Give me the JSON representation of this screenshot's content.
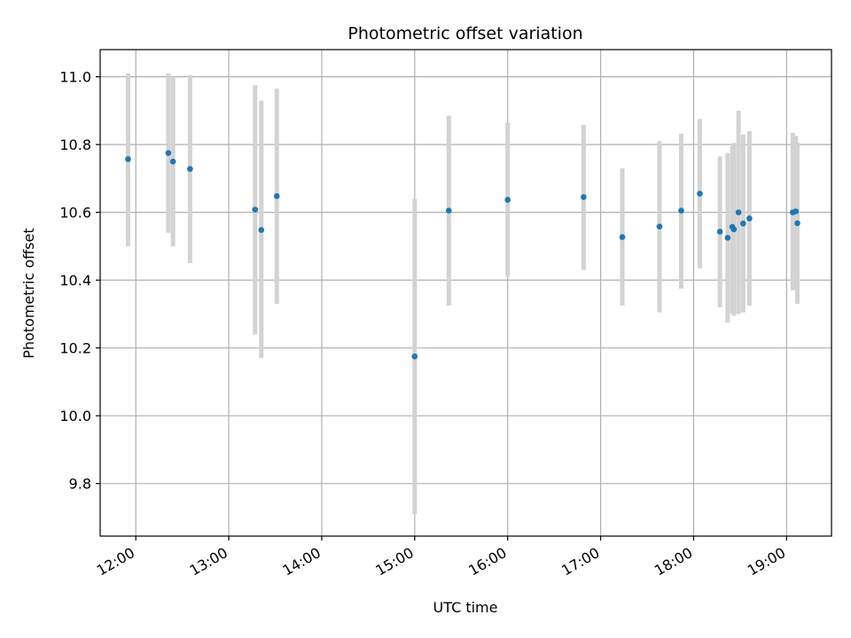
{
  "chart_data": {
    "type": "scatter",
    "title": "Photometric offset variation",
    "xlabel": "UTC time",
    "ylabel": "Photometric offset",
    "x_unit": "UTC time of day (HH:MM)",
    "xlim": [
      "11:37",
      "19:29"
    ],
    "ylim": [
      9.645,
      11.08
    ],
    "grid": true,
    "x_ticks": [
      "12:00",
      "13:00",
      "14:00",
      "15:00",
      "16:00",
      "17:00",
      "18:00",
      "19:00"
    ],
    "y_ticks": [
      9.8,
      10.0,
      10.2,
      10.4,
      10.6,
      10.8,
      11.0
    ],
    "y_tick_labels": [
      "9.8",
      "10.0",
      "10.2",
      "10.4",
      "10.6",
      "10.8",
      "11.0"
    ],
    "point_color": "#1f77b4",
    "errorbar_color": "#d3d3d3",
    "points": [
      {
        "time": "11:55",
        "y": 10.757,
        "yerr": [
          10.5,
          11.01
        ]
      },
      {
        "time": "12:21",
        "y": 10.775,
        "yerr": [
          10.54,
          11.01
        ]
      },
      {
        "time": "12:24",
        "y": 10.75,
        "yerr": [
          10.5,
          11.0
        ]
      },
      {
        "time": "12:35",
        "y": 10.728,
        "yerr": [
          10.45,
          11.005
        ]
      },
      {
        "time": "13:17",
        "y": 10.608,
        "yerr": [
          10.24,
          10.975
        ]
      },
      {
        "time": "13:21",
        "y": 10.548,
        "yerr": [
          10.17,
          10.93
        ]
      },
      {
        "time": "13:31",
        "y": 10.648,
        "yerr": [
          10.33,
          10.965
        ]
      },
      {
        "time": "15:00",
        "y": 10.175,
        "yerr": [
          9.71,
          10.64
        ]
      },
      {
        "time": "15:22",
        "y": 10.605,
        "yerr": [
          10.325,
          10.885
        ]
      },
      {
        "time": "16:00",
        "y": 10.637,
        "yerr": [
          10.41,
          10.865
        ]
      },
      {
        "time": "16:49",
        "y": 10.645,
        "yerr": [
          10.43,
          10.858
        ]
      },
      {
        "time": "17:14",
        "y": 10.527,
        "yerr": [
          10.325,
          10.73
        ]
      },
      {
        "time": "17:38",
        "y": 10.558,
        "yerr": [
          10.305,
          10.81
        ]
      },
      {
        "time": "17:52",
        "y": 10.605,
        "yerr": [
          10.375,
          10.832
        ]
      },
      {
        "time": "18:04",
        "y": 10.655,
        "yerr": [
          10.435,
          10.875
        ]
      },
      {
        "time": "18:17",
        "y": 10.543,
        "yerr": [
          10.32,
          10.765
        ]
      },
      {
        "time": "18:22",
        "y": 10.525,
        "yerr": [
          10.275,
          10.775
        ]
      },
      {
        "time": "18:25",
        "y": 10.557,
        "yerr": [
          10.3,
          10.795
        ]
      },
      {
        "time": "18:26",
        "y": 10.55,
        "yerr": [
          10.295,
          10.805
        ]
      },
      {
        "time": "18:29",
        "y": 10.6,
        "yerr": [
          10.3,
          10.9
        ]
      },
      {
        "time": "18:32",
        "y": 10.567,
        "yerr": [
          10.305,
          10.83
        ]
      },
      {
        "time": "18:36",
        "y": 10.582,
        "yerr": [
          10.325,
          10.84
        ]
      },
      {
        "time": "19:04",
        "y": 10.6,
        "yerr": [
          10.37,
          10.835
        ]
      },
      {
        "time": "19:06",
        "y": 10.603,
        "yerr": [
          10.37,
          10.825
        ]
      },
      {
        "time": "19:07",
        "y": 10.568,
        "yerr": [
          10.33,
          10.805
        ]
      }
    ]
  }
}
